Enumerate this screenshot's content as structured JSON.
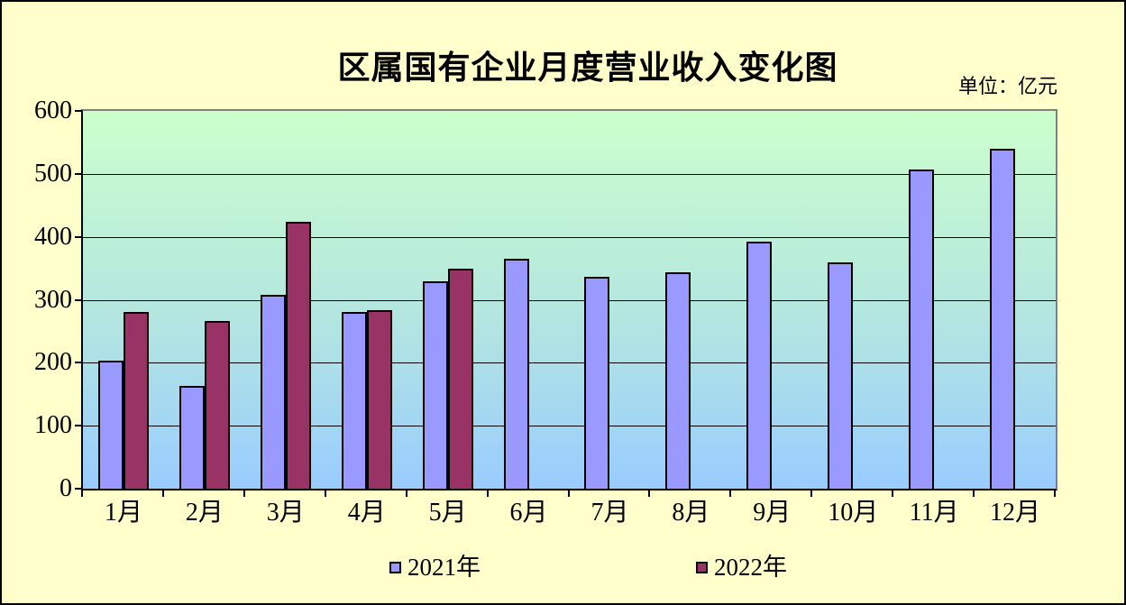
{
  "title": "区属国有企业月度营业收入变化图",
  "unit_label": "单位：亿元",
  "colors": {
    "page_background": "#FFFFCC",
    "plot_gradient_top": "#CCFFCC",
    "plot_gradient_bottom": "#99CCFF",
    "plot_border": "#808080",
    "axis": "#000000",
    "gridline": "#000000",
    "series_2021": "#9999FF",
    "series_2022": "#993366"
  },
  "chart_data": {
    "type": "bar",
    "title": "区属国有企业月度营业收入变化图",
    "unit": "单位：亿元",
    "categories": [
      "1月",
      "2月",
      "3月",
      "4月",
      "5月",
      "6月",
      "7月",
      "8月",
      "9月",
      "10月",
      "11月",
      "12月"
    ],
    "series": [
      {
        "name": "2021年",
        "color": "#9999FF",
        "values": [
          203,
          163,
          308,
          280,
          330,
          365,
          336,
          343,
          392,
          360,
          507,
          540
        ]
      },
      {
        "name": "2022年",
        "color": "#993366",
        "values": [
          281,
          266,
          424,
          283,
          350,
          null,
          null,
          null,
          null,
          null,
          null,
          null
        ]
      }
    ],
    "xlabel": "",
    "ylabel": "",
    "ylim": [
      0,
      600
    ],
    "ytick_interval": 100,
    "ytick_labels": [
      "600",
      "500",
      "400",
      "300",
      "200",
      "100",
      "0"
    ],
    "grid": true,
    "legend_position": "bottom",
    "legend_entries": [
      "2021年",
      "2022年"
    ]
  }
}
